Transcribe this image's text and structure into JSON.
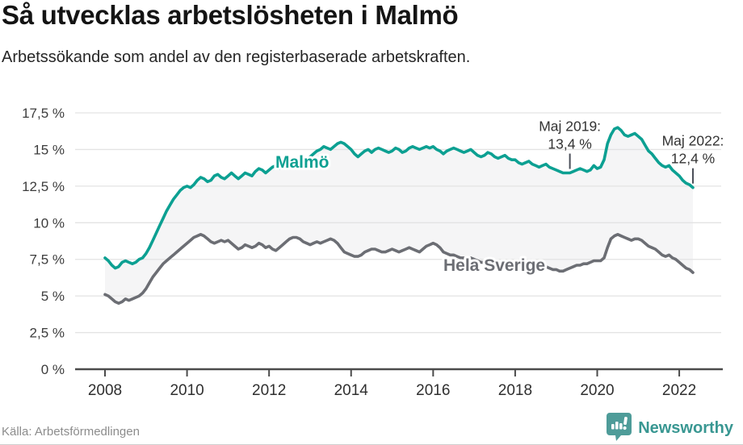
{
  "header": {
    "title": "Så utvecklas arbetslösheten i Malmö",
    "subtitle": "Arbetssökande som andel av den registerbaserade arbetskraften."
  },
  "footer": {
    "source": "Källa: Arbetsförmedlingen",
    "brand": "Newsworthy"
  },
  "colors": {
    "malmo": "#0CA092",
    "sverige": "#6C6E74",
    "area_fill": "#F5F5F6",
    "grid": "#E3E3E3",
    "axis": "#4B4B4B",
    "tick_text": "#3C3C3C",
    "annotation_text": "#333333",
    "brand_teal": "#399792",
    "icon_teal": "#4E9C99"
  },
  "chart_data": {
    "type": "line",
    "title": "Så utvecklas arbetslösheten i Malmö",
    "subtitle": "Arbetssökande som andel av den registerbaserade arbetskraften.",
    "xlabel": "",
    "ylabel": "Arbetssökande som andel av den registerbaserade arbetskraften (%)",
    "frequency": "monthly",
    "x_start": "2008-01",
    "x_end": "2022-05",
    "ylim": [
      0,
      17.5
    ],
    "grid": true,
    "y_ticks": [
      "0 %",
      "2,5 %",
      "5 %",
      "7,5 %",
      "10 %",
      "12,5 %",
      "15 %",
      "17,5 %"
    ],
    "x_tick_years": [
      "2008",
      "2010",
      "2012",
      "2014",
      "2016",
      "2018",
      "2020",
      "2022"
    ],
    "area_fill_between_series": true,
    "series": [
      {
        "name": "Malmö",
        "color": "#0CA092",
        "values": [
          7.6,
          7.4,
          7.1,
          6.9,
          7.0,
          7.3,
          7.4,
          7.3,
          7.2,
          7.3,
          7.5,
          7.6,
          7.9,
          8.3,
          8.8,
          9.3,
          9.8,
          10.3,
          10.8,
          11.2,
          11.6,
          11.9,
          12.2,
          12.4,
          12.5,
          12.4,
          12.6,
          12.9,
          13.1,
          13.0,
          12.8,
          12.9,
          13.2,
          13.3,
          13.1,
          13.0,
          13.2,
          13.4,
          13.2,
          13.0,
          13.2,
          13.4,
          13.3,
          13.2,
          13.5,
          13.7,
          13.6,
          13.4,
          13.6,
          13.8,
          13.9,
          13.7,
          13.8,
          14.0,
          14.1,
          14.0,
          13.9,
          14.1,
          14.2,
          14.3,
          14.5,
          14.7,
          14.9,
          15.0,
          15.2,
          15.1,
          15.0,
          15.2,
          15.4,
          15.5,
          15.4,
          15.2,
          15.0,
          14.7,
          14.5,
          14.7,
          14.9,
          15.0,
          14.8,
          15.0,
          15.1,
          15.0,
          14.9,
          14.8,
          14.9,
          15.1,
          15.0,
          14.8,
          14.9,
          15.1,
          15.2,
          15.1,
          15.0,
          15.1,
          15.2,
          15.1,
          15.2,
          15.0,
          14.9,
          14.7,
          14.9,
          15.0,
          15.1,
          15.0,
          14.9,
          14.8,
          14.9,
          15.0,
          14.8,
          14.6,
          14.5,
          14.6,
          14.8,
          14.7,
          14.5,
          14.4,
          14.5,
          14.6,
          14.4,
          14.3,
          14.3,
          14.1,
          14.0,
          14.1,
          14.2,
          14.0,
          13.9,
          13.8,
          13.9,
          14.0,
          13.8,
          13.7,
          13.6,
          13.5,
          13.4,
          13.4,
          13.4,
          13.5,
          13.6,
          13.7,
          13.6,
          13.5,
          13.6,
          13.9,
          13.7,
          13.8,
          14.3,
          15.4,
          16.0,
          16.4,
          16.5,
          16.3,
          16.0,
          15.9,
          16.0,
          16.1,
          15.9,
          15.7,
          15.3,
          14.9,
          14.7,
          14.4,
          14.1,
          13.9,
          13.8,
          13.9,
          13.6,
          13.4,
          13.2,
          12.9,
          12.7,
          12.6,
          12.4
        ]
      },
      {
        "name": "Hela Sverige",
        "color": "#6C6E74",
        "values": [
          5.1,
          5.0,
          4.8,
          4.6,
          4.5,
          4.6,
          4.8,
          4.7,
          4.8,
          4.9,
          5.0,
          5.2,
          5.5,
          5.9,
          6.3,
          6.6,
          6.9,
          7.2,
          7.4,
          7.6,
          7.8,
          8.0,
          8.2,
          8.4,
          8.6,
          8.8,
          9.0,
          9.1,
          9.2,
          9.1,
          8.9,
          8.7,
          8.6,
          8.7,
          8.8,
          8.7,
          8.8,
          8.6,
          8.4,
          8.2,
          8.3,
          8.5,
          8.4,
          8.3,
          8.4,
          8.6,
          8.5,
          8.3,
          8.4,
          8.2,
          8.1,
          8.3,
          8.5,
          8.7,
          8.9,
          9.0,
          9.0,
          8.9,
          8.7,
          8.6,
          8.5,
          8.6,
          8.7,
          8.6,
          8.7,
          8.8,
          8.9,
          8.8,
          8.6,
          8.3,
          8.0,
          7.9,
          7.8,
          7.7,
          7.7,
          7.8,
          8.0,
          8.1,
          8.2,
          8.2,
          8.1,
          8.0,
          8.0,
          8.1,
          8.2,
          8.1,
          8.0,
          8.1,
          8.2,
          8.3,
          8.2,
          8.1,
          8.0,
          8.2,
          8.4,
          8.5,
          8.6,
          8.5,
          8.3,
          8.0,
          7.9,
          7.8,
          7.8,
          7.7,
          7.6,
          7.6,
          7.5,
          7.6,
          7.5,
          7.4,
          7.3,
          7.3,
          7.2,
          7.2,
          7.1,
          7.1,
          7.2,
          7.2,
          7.1,
          7.0,
          7.0,
          7.0,
          6.9,
          7.0,
          7.1,
          7.0,
          6.9,
          7.0,
          7.1,
          7.0,
          6.9,
          6.8,
          6.8,
          6.7,
          6.7,
          6.8,
          6.9,
          7.0,
          7.1,
          7.1,
          7.2,
          7.2,
          7.3,
          7.4,
          7.4,
          7.4,
          7.6,
          8.3,
          8.9,
          9.1,
          9.2,
          9.1,
          9.0,
          8.9,
          8.8,
          8.9,
          8.9,
          8.8,
          8.6,
          8.4,
          8.3,
          8.2,
          8.0,
          7.8,
          7.7,
          7.8,
          7.6,
          7.5,
          7.3,
          7.1,
          6.9,
          6.8,
          6.6
        ]
      }
    ],
    "annotations": [
      {
        "lines": [
          "Maj 2019:",
          "13,4 %"
        ],
        "year": 2019,
        "month": 5,
        "value": 13.4
      },
      {
        "lines": [
          "Maj 2022:",
          "12,4 %"
        ],
        "year": 2022,
        "month": 5,
        "value": 12.4
      }
    ]
  }
}
